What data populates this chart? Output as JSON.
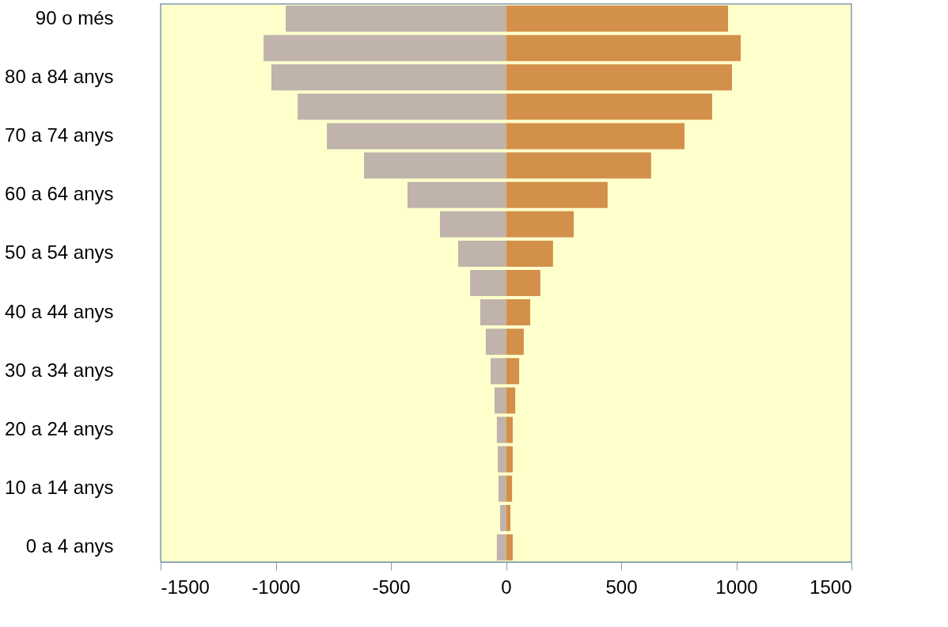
{
  "chart_data": {
    "type": "bar",
    "orientation": "horizontal",
    "stacked": true,
    "categories": [
      "90 o més",
      null,
      "80 a 84 anys",
      null,
      "70 a 74 anys",
      null,
      "60 a 64 anys",
      null,
      "50 a 54 anys",
      null,
      "40 a 44 anys",
      null,
      "30 a 34 anys",
      null,
      "20 a 24 anys",
      null,
      "10 a 14 anys",
      null,
      "0 a 4 anys"
    ],
    "series": [
      {
        "color": "#bfb3ab",
        "values": [
          -957,
          -1053,
          -1019,
          -905,
          -778,
          -617,
          -428,
          -287,
          -208,
          -156,
          -112,
          -88,
          -67,
          -50,
          -40,
          -36,
          -33,
          -26,
          -40
        ]
      },
      {
        "color": "#d2904a",
        "values": [
          964,
          1019,
          981,
          895,
          775,
          630,
          441,
          294,
          204,
          149,
          105,
          77,
          57,
          40,
          29,
          29,
          26,
          19,
          29
        ]
      }
    ],
    "xlim": [
      -1500,
      1500
    ],
    "xticks": [
      -1500,
      -1000,
      -500,
      0,
      500,
      1000,
      1500
    ],
    "grid": false,
    "legend": false
  }
}
